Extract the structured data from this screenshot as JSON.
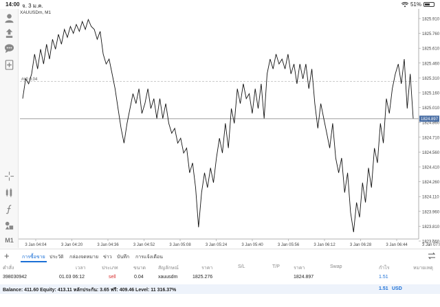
{
  "status_bar": {
    "time": "14:00",
    "date": "จ. 3 ม.ค.",
    "battery": "51%",
    "battery_level": 0.51
  },
  "chart": {
    "symbol": "XAUUSDm, M1",
    "line_color": "#111111",
    "bid_line_color": "#7a7a7a",
    "bid_label_bg": "#4a6fa5",
    "y_ticks": [
      "1825.910",
      "1825.760",
      "1825.610",
      "1825.460",
      "1825.310",
      "1825.160",
      "1825.010",
      "1824.860",
      "1824.710",
      "1824.560",
      "1824.410",
      "1824.260",
      "1824.110",
      "1823.960",
      "1823.810",
      "1823.660"
    ],
    "x_ticks": [
      "3 Jan 04:04",
      "3 Jan 04:20",
      "3 Jan 04:36",
      "3 Jan 04:52",
      "3 Jan 05:08",
      "3 Jan 05:24",
      "3 Jan 05:40",
      "3 Jan 05:56",
      "3 Jan 06:12",
      "3 Jan 06:28",
      "3 Jan 06:44",
      "3 Jan 07:00"
    ],
    "open_price_label": "##0 0.04",
    "open_price": 1825.276,
    "bid_price_label": "1824.897",
    "bid_price": 1824.897,
    "price_series": [
      1825.1,
      1825.3,
      1825.25,
      1825.35,
      1825.55,
      1825.4,
      1825.6,
      1825.45,
      1825.65,
      1825.5,
      1825.7,
      1825.6,
      1825.75,
      1825.65,
      1825.8,
      1825.72,
      1825.83,
      1825.76,
      1825.85,
      1825.78,
      1825.88,
      1825.8,
      1825.9,
      1825.83,
      1825.8,
      1825.7,
      1825.78,
      1825.55,
      1825.45,
      1825.5,
      1825.35,
      1825.2,
      1825.0,
      1824.8,
      1824.65,
      1824.85,
      1825.0,
      1825.15,
      1825.05,
      1825.2,
      1824.95,
      1825.05,
      1825.2,
      1825.0,
      1825.1,
      1824.9,
      1825.1,
      1824.9,
      1825.05,
      1824.85,
      1824.75,
      1824.8,
      1824.65,
      1824.7,
      1824.55,
      1824.6,
      1824.35,
      1824.45,
      1824.2,
      1823.8,
      1824.15,
      1824.35,
      1824.2,
      1824.4,
      1824.25,
      1824.5,
      1824.7,
      1824.55,
      1824.85,
      1824.6,
      1825.0,
      1824.85,
      1825.2,
      1825.05,
      1825.25,
      1825.1,
      1825.15,
      1824.95,
      1825.2,
      1825.0,
      1825.25,
      1824.9,
      1825.35,
      1825.5,
      1825.4,
      1825.55,
      1825.45,
      1825.5,
      1825.4,
      1825.55,
      1825.35,
      1825.45,
      1825.25,
      1825.45,
      1825.3,
      1825.45,
      1825.2,
      1825.4,
      1825.05,
      1824.8,
      1825.05,
      1824.9,
      1824.75,
      1824.6,
      1824.85,
      1824.5,
      1824.35,
      1824.5,
      1824.15,
      1824.35,
      1823.95,
      1823.75,
      1824.05,
      1823.9,
      1824.25,
      1824.05,
      1824.4,
      1824.2,
      1824.6,
      1824.45,
      1824.85,
      1824.65,
      1825.1,
      1824.95,
      1825.2,
      1825.35,
      1825.45,
      1825.25,
      1825.5,
      1825.0,
      1825.35,
      1824.9
    ]
  },
  "toolbar": {
    "timeframe": "M1"
  },
  "tabs": [
    {
      "label": "การซื้อขาย",
      "active": true
    },
    {
      "label": "ประวัติ",
      "active": false
    },
    {
      "label": "กล่องจดหมาย",
      "active": false
    },
    {
      "label": "ข่าว",
      "active": false
    },
    {
      "label": "บันทึก",
      "active": false
    },
    {
      "label": "การแจ้งเตือน",
      "active": false
    }
  ],
  "table": {
    "headers": {
      "order": "คำสั่ง",
      "time": "เวลา",
      "type": "ประเภท",
      "volume": "ขนาด",
      "symbol": "สัญลักษณ์",
      "price": "ราคา",
      "sl": "S/L",
      "tp": "T/P",
      "current": "ราคา",
      "swap": "Swap",
      "profit": "กำไร",
      "comment": "หมายเหตุ"
    },
    "row": {
      "order": "398030942",
      "time": "01.03 06:12",
      "type": "sell",
      "volume": "0.04",
      "symbol": "xauusdm",
      "price": "1825.276",
      "sl": "",
      "tp": "",
      "current": "1824.897",
      "swap": "",
      "profit": "1.51",
      "comment": ""
    }
  },
  "balance": {
    "text": "Balance: 411.60 Equity: 413.11 หลักประกัน: 3.65 ฟรี: 409.46 Level: 11 316.37%",
    "total": "1.51",
    "currency": "USD"
  }
}
